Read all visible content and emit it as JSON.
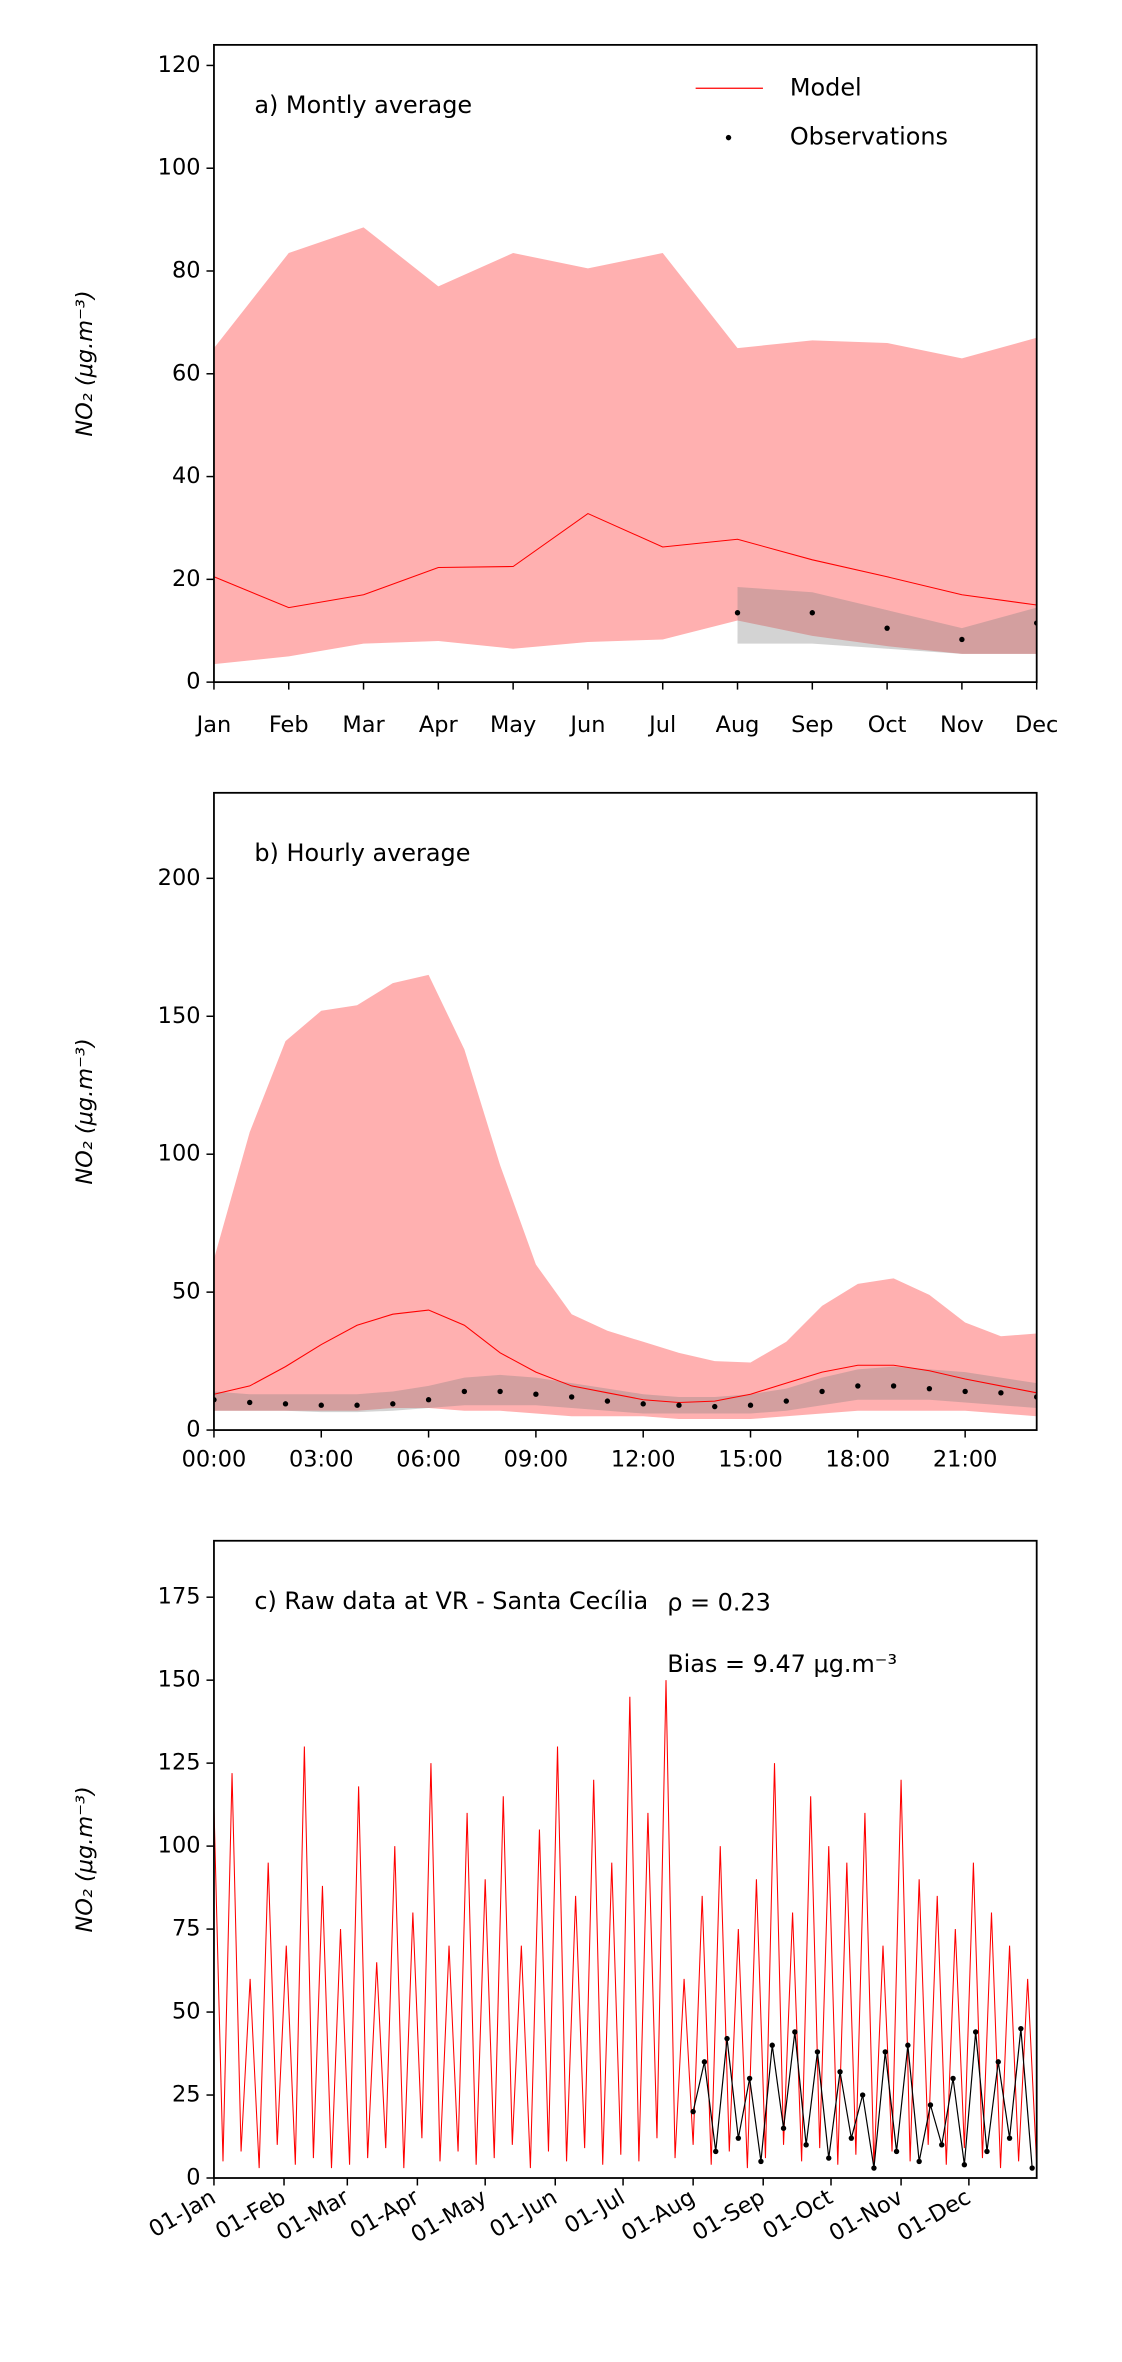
{
  "chart_data": [
    {
      "type": "line",
      "title": "a) Montly average",
      "ylabel": "NO₂ (μg.m⁻³)",
      "legend": "upper right",
      "categories": [
        "Jan",
        "Feb",
        "Mar",
        "Apr",
        "May",
        "Jun",
        "Jul",
        "Aug",
        "Sep",
        "Oct",
        "Nov",
        "Dec"
      ],
      "ylim": [
        0,
        124
      ],
      "yticks": [
        0,
        20,
        40,
        60,
        80,
        100,
        120
      ],
      "series": [
        {
          "name": "Model",
          "color": "#ff0000",
          "band_color": "#ffb0b0",
          "linestyle": "-",
          "values": [
            20.5,
            14.5,
            17,
            22.3,
            22.5,
            32.8,
            26.3,
            27.8,
            23.8,
            20.5,
            17,
            15
          ],
          "upper": [
            65,
            83.5,
            88.5,
            77,
            83.5,
            80.5,
            83.5,
            65,
            66.5,
            66,
            63,
            67
          ],
          "lower": [
            3.5,
            5,
            7.5,
            8,
            6.5,
            7.8,
            8.3,
            12,
            9,
            7,
            5.5,
            5.5
          ]
        },
        {
          "name": "Observations",
          "color": "#000000",
          "band_color": "#808080",
          "marker": "o",
          "linestyle": "none",
          "values": [
            null,
            null,
            null,
            null,
            null,
            null,
            null,
            13.5,
            13.5,
            10.5,
            8.3,
            11.5
          ],
          "upper": [
            null,
            null,
            null,
            null,
            null,
            null,
            null,
            18.5,
            17.5,
            14,
            10.5,
            14.5
          ],
          "lower": [
            null,
            null,
            null,
            null,
            null,
            null,
            null,
            7.5,
            7.5,
            6.5,
            5.5,
            5.5
          ]
        }
      ]
    },
    {
      "type": "line",
      "title": "b) Hourly average",
      "ylabel": "NO₂ (μg.m⁻³)",
      "x": [
        0,
        1,
        2,
        3,
        4,
        5,
        6,
        7,
        8,
        9,
        10,
        11,
        12,
        13,
        14,
        15,
        16,
        17,
        18,
        19,
        20,
        21,
        22,
        23
      ],
      "xlim": [
        0,
        23
      ],
      "xticks": [
        {
          "value": 0,
          "label": "00:00"
        },
        {
          "value": 3,
          "label": "03:00"
        },
        {
          "value": 6,
          "label": "06:00"
        },
        {
          "value": 9,
          "label": "09:00"
        },
        {
          "value": 12,
          "label": "12:00"
        },
        {
          "value": 15,
          "label": "15:00"
        },
        {
          "value": 18,
          "label": "18:00"
        },
        {
          "value": 21,
          "label": "21:00"
        }
      ],
      "ylim": [
        0,
        231
      ],
      "yticks": [
        0,
        50,
        100,
        150,
        200
      ],
      "series": [
        {
          "color": "#ff0000",
          "band_color": "#ffb0b0",
          "linestyle": "-",
          "values": [
            13,
            16,
            23,
            31,
            38,
            42,
            43.5,
            38,
            28,
            21,
            16,
            13.5,
            11,
            10,
            10.5,
            13,
            17,
            21,
            23.5,
            23.5,
            21.5,
            18.5,
            16,
            13.5
          ],
          "upper": [
            62,
            108,
            141,
            152,
            154,
            162,
            165,
            138,
            96,
            60,
            42,
            36,
            32,
            28,
            25,
            24.5,
            32,
            45,
            53,
            55,
            49,
            39,
            34,
            35
          ],
          "lower": [
            7,
            7,
            7,
            7,
            7,
            8,
            8,
            7,
            7,
            6,
            5,
            5,
            5,
            4,
            4,
            4,
            5,
            6,
            7,
            7,
            7,
            7,
            6,
            5
          ]
        },
        {
          "color": "#000000",
          "band_color": "#808080",
          "marker": "o",
          "linestyle": "none",
          "values": [
            11,
            10,
            9.5,
            9,
            9,
            9.5,
            11,
            14,
            14,
            13,
            12,
            10.5,
            9.5,
            9,
            8.5,
            9,
            10.5,
            14,
            16,
            16,
            15,
            14,
            13.5,
            12
          ],
          "upper": [
            14,
            13,
            13,
            13,
            13,
            14,
            16,
            19,
            20,
            19,
            17,
            15,
            13,
            12,
            12,
            13,
            15,
            19,
            22,
            23,
            22,
            21,
            19,
            17
          ],
          "lower": [
            7,
            7,
            7,
            6.5,
            6.5,
            7,
            8,
            9,
            9,
            9,
            8,
            7,
            6,
            6,
            6,
            6,
            7,
            9,
            11,
            11,
            11,
            10,
            9,
            8
          ]
        }
      ]
    },
    {
      "type": "line",
      "title": "c) Raw data at VR - Santa Cecília",
      "ylabel": "NO₂ (μg.m⁻³)",
      "annotations": [
        "ρ = 0.23",
        "Bias = 9.47 μg.m⁻³"
      ],
      "xlim": [
        0,
        364
      ],
      "xtick_rotation": 30,
      "xticks": [
        {
          "value": 0,
          "label": "01-Jan"
        },
        {
          "value": 31,
          "label": "01-Feb"
        },
        {
          "value": 59,
          "label": "01-Mar"
        },
        {
          "value": 90,
          "label": "01-Apr"
        },
        {
          "value": 120,
          "label": "01-May"
        },
        {
          "value": 151,
          "label": "01-Jun"
        },
        {
          "value": 181,
          "label": "01-Jul"
        },
        {
          "value": 212,
          "label": "01-Aug"
        },
        {
          "value": 243,
          "label": "01-Sep"
        },
        {
          "value": 273,
          "label": "01-Oct"
        },
        {
          "value": 304,
          "label": "01-Nov"
        },
        {
          "value": 334,
          "label": "01-Dec"
        }
      ],
      "ylim": [
        0,
        192
      ],
      "yticks": [
        0,
        25,
        50,
        75,
        100,
        125,
        150,
        175
      ],
      "series": [
        {
          "color": "#ff0000",
          "linestyle": "-",
          "x": [
            0,
            4,
            8,
            12,
            16,
            20,
            24,
            28,
            32,
            36,
            40,
            44,
            48,
            52,
            56,
            60,
            64,
            68,
            72,
            76,
            80,
            84,
            88,
            92,
            96,
            100,
            104,
            108,
            112,
            116,
            120,
            124,
            128,
            132,
            136,
            140,
            144,
            148,
            152,
            156,
            160,
            164,
            168,
            172,
            176,
            180,
            184,
            188,
            192,
            196,
            200,
            204,
            208,
            212,
            216,
            220,
            224,
            228,
            232,
            236,
            240,
            244,
            248,
            252,
            256,
            260,
            264,
            268,
            272,
            276,
            280,
            284,
            288,
            292,
            296,
            300,
            304,
            308,
            312,
            316,
            320,
            324,
            328,
            332,
            336,
            340,
            344,
            348,
            352,
            356,
            360,
            364
          ],
          "values": [
            112,
            5,
            122,
            8,
            60,
            3,
            95,
            10,
            70,
            4,
            130,
            6,
            88,
            3,
            75,
            4,
            118,
            6,
            65,
            9,
            100,
            3,
            80,
            12,
            125,
            5,
            70,
            8,
            110,
            4,
            90,
            6,
            115,
            10,
            70,
            3,
            105,
            8,
            130,
            5,
            85,
            9,
            120,
            4,
            95,
            7,
            145,
            5,
            110,
            12,
            150,
            6,
            60,
            10,
            85,
            4,
            100,
            8,
            75,
            3,
            90,
            6,
            125,
            10,
            80,
            5,
            115,
            9,
            100,
            4,
            95,
            7,
            110,
            3,
            70,
            8,
            120,
            5,
            90,
            10,
            85,
            4,
            75,
            9,
            95,
            6,
            80,
            3,
            70,
            5,
            60,
            4
          ]
        },
        {
          "color": "#000000",
          "marker": "o",
          "linestyle": "-",
          "x": [
            212,
            217,
            222,
            227,
            232,
            237,
            242,
            247,
            252,
            257,
            262,
            267,
            272,
            277,
            282,
            287,
            292,
            297,
            302,
            307,
            312,
            317,
            322,
            327,
            332,
            337,
            342,
            347,
            352,
            357,
            362
          ],
          "values": [
            20,
            35,
            8,
            42,
            12,
            30,
            5,
            40,
            15,
            44,
            10,
            38,
            6,
            32,
            12,
            25,
            3,
            38,
            8,
            40,
            5,
            22,
            10,
            30,
            4,
            44,
            8,
            35,
            12,
            45,
            3
          ]
        }
      ]
    }
  ]
}
